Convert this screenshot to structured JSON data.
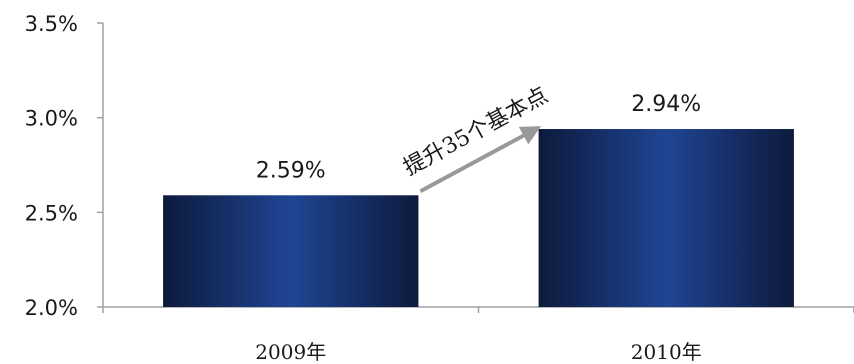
{
  "chart_data": {
    "type": "bar",
    "categories": [
      "2009年",
      "2010年"
    ],
    "values": [
      2.59,
      2.94
    ],
    "data_labels": [
      "2.59%",
      "2.94%"
    ],
    "y_ticks": [
      2.0,
      2.5,
      3.0,
      3.5
    ],
    "y_tick_labels": [
      "2.0%",
      "2.5%",
      "3.0%",
      "3.5%"
    ],
    "ylim": [
      2.0,
      3.5
    ],
    "title": "",
    "xlabel": "",
    "ylabel": "",
    "grid": false,
    "annotation": "提升35个基本点",
    "colors": {
      "bar_edge": "#0d1a3c",
      "bar_center": "#1f4594",
      "arrow": "#999999",
      "axis": "#a0a0a0"
    }
  }
}
